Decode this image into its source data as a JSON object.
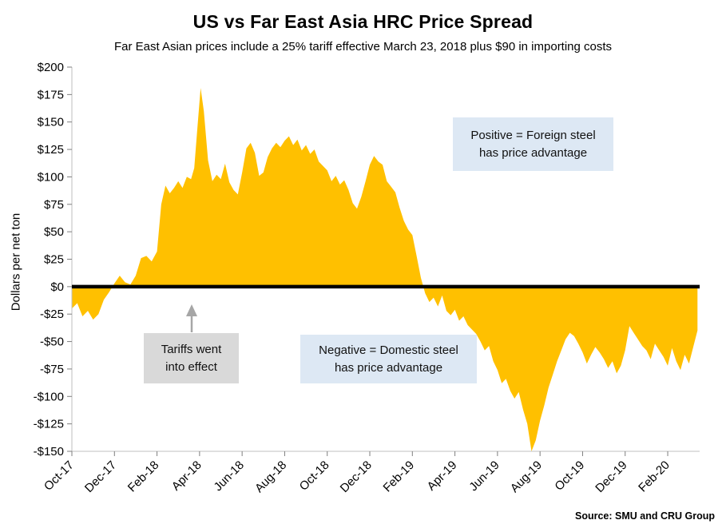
{
  "chart_data": {
    "type": "area",
    "title": "US vs Far East Asia HRC Price Spread",
    "subtitle": "Far East Asian prices include a 25% tariff effective March 23, 2018 plus $90 in importing costs",
    "ylabel": "Dollars per net ton",
    "xlabel": "",
    "ylim": [
      -150,
      200
    ],
    "x_unit": "months since Oct-2017",
    "x_max": 29.5,
    "baseline": 0,
    "grid": "off",
    "legend": "none",
    "area_color": "#FFC000",
    "zero_line_color": "#000000",
    "y_ticks": [
      {
        "v": 200,
        "label": "$200"
      },
      {
        "v": 175,
        "label": "$175"
      },
      {
        "v": 150,
        "label": "$150"
      },
      {
        "v": 125,
        "label": "$125"
      },
      {
        "v": 100,
        "label": "$100"
      },
      {
        "v": 75,
        "label": "$75"
      },
      {
        "v": 50,
        "label": "$50"
      },
      {
        "v": 25,
        "label": "$25"
      },
      {
        "v": 0,
        "label": "$0"
      },
      {
        "v": -25,
        "label": "-$25"
      },
      {
        "v": -50,
        "label": "-$50"
      },
      {
        "v": -75,
        "label": "-$75"
      },
      {
        "v": -100,
        "label": "-$100"
      },
      {
        "v": -125,
        "label": "-$125"
      },
      {
        "v": -150,
        "label": "-$150"
      }
    ],
    "x_ticks": [
      {
        "m": 0,
        "label": "Oct-17"
      },
      {
        "m": 2,
        "label": "Dec-17"
      },
      {
        "m": 4,
        "label": "Feb-18"
      },
      {
        "m": 6,
        "label": "Apr-18"
      },
      {
        "m": 8,
        "label": "Jun-18"
      },
      {
        "m": 10,
        "label": "Aug-18"
      },
      {
        "m": 12,
        "label": "Oct-18"
      },
      {
        "m": 14,
        "label": "Dec-18"
      },
      {
        "m": 16,
        "label": "Feb-19"
      },
      {
        "m": 18,
        "label": "Apr-19"
      },
      {
        "m": 20,
        "label": "Jun-19"
      },
      {
        "m": 22,
        "label": "Aug-19"
      },
      {
        "m": 24,
        "label": "Oct-19"
      },
      {
        "m": 26,
        "label": "Dec-19"
      },
      {
        "m": 28,
        "label": "Feb-20"
      }
    ],
    "points": [
      [
        0,
        -20
      ],
      [
        0.25,
        -15
      ],
      [
        0.5,
        -27
      ],
      [
        0.75,
        -22
      ],
      [
        1,
        -30
      ],
      [
        1.25,
        -25
      ],
      [
        1.5,
        -12
      ],
      [
        1.75,
        -5
      ],
      [
        2,
        3
      ],
      [
        2.25,
        10
      ],
      [
        2.5,
        4
      ],
      [
        2.75,
        2
      ],
      [
        3,
        10
      ],
      [
        3.25,
        26
      ],
      [
        3.5,
        28
      ],
      [
        3.75,
        23
      ],
      [
        4,
        32
      ],
      [
        4.2,
        75
      ],
      [
        4.4,
        92
      ],
      [
        4.6,
        85
      ],
      [
        4.8,
        90
      ],
      [
        5,
        96
      ],
      [
        5.2,
        90
      ],
      [
        5.4,
        100
      ],
      [
        5.6,
        98
      ],
      [
        5.75,
        108
      ],
      [
        5.9,
        145
      ],
      [
        6.05,
        181
      ],
      [
        6.2,
        160
      ],
      [
        6.4,
        115
      ],
      [
        6.6,
        96
      ],
      [
        6.8,
        102
      ],
      [
        7,
        98
      ],
      [
        7.2,
        112
      ],
      [
        7.4,
        95
      ],
      [
        7.6,
        88
      ],
      [
        7.8,
        84
      ],
      [
        8,
        104
      ],
      [
        8.2,
        126
      ],
      [
        8.4,
        131
      ],
      [
        8.6,
        122
      ],
      [
        8.8,
        101
      ],
      [
        9,
        104
      ],
      [
        9.2,
        118
      ],
      [
        9.4,
        126
      ],
      [
        9.6,
        131
      ],
      [
        9.8,
        127
      ],
      [
        10,
        133
      ],
      [
        10.2,
        137
      ],
      [
        10.4,
        129
      ],
      [
        10.6,
        134
      ],
      [
        10.8,
        124
      ],
      [
        11,
        129
      ],
      [
        11.2,
        121
      ],
      [
        11.4,
        125
      ],
      [
        11.6,
        114
      ],
      [
        11.8,
        110
      ],
      [
        12,
        106
      ],
      [
        12.2,
        96
      ],
      [
        12.4,
        101
      ],
      [
        12.6,
        93
      ],
      [
        12.8,
        97
      ],
      [
        13,
        88
      ],
      [
        13.2,
        76
      ],
      [
        13.4,
        71
      ],
      [
        13.6,
        82
      ],
      [
        13.8,
        96
      ],
      [
        14,
        111
      ],
      [
        14.2,
        119
      ],
      [
        14.4,
        114
      ],
      [
        14.6,
        111
      ],
      [
        14.8,
        96
      ],
      [
        15,
        91
      ],
      [
        15.2,
        86
      ],
      [
        15.4,
        72
      ],
      [
        15.6,
        60
      ],
      [
        15.8,
        52
      ],
      [
        16,
        47
      ],
      [
        16.2,
        28
      ],
      [
        16.4,
        8
      ],
      [
        16.6,
        -6
      ],
      [
        16.8,
        -14
      ],
      [
        17,
        -10
      ],
      [
        17.2,
        -18
      ],
      [
        17.4,
        -8
      ],
      [
        17.6,
        -22
      ],
      [
        17.8,
        -26
      ],
      [
        18,
        -21
      ],
      [
        18.2,
        -31
      ],
      [
        18.4,
        -27
      ],
      [
        18.6,
        -35
      ],
      [
        18.8,
        -39
      ],
      [
        19,
        -43
      ],
      [
        19.2,
        -50
      ],
      [
        19.4,
        -58
      ],
      [
        19.6,
        -54
      ],
      [
        19.8,
        -68
      ],
      [
        20,
        -76
      ],
      [
        20.2,
        -88
      ],
      [
        20.4,
        -84
      ],
      [
        20.6,
        -95
      ],
      [
        20.8,
        -102
      ],
      [
        21,
        -96
      ],
      [
        21.2,
        -112
      ],
      [
        21.4,
        -125
      ],
      [
        21.6,
        -150
      ],
      [
        21.8,
        -140
      ],
      [
        22,
        -122
      ],
      [
        22.2,
        -108
      ],
      [
        22.4,
        -92
      ],
      [
        22.6,
        -80
      ],
      [
        22.8,
        -68
      ],
      [
        23,
        -58
      ],
      [
        23.2,
        -48
      ],
      [
        23.4,
        -42
      ],
      [
        23.6,
        -45
      ],
      [
        23.8,
        -52
      ],
      [
        24,
        -60
      ],
      [
        24.2,
        -70
      ],
      [
        24.4,
        -62
      ],
      [
        24.6,
        -55
      ],
      [
        24.8,
        -60
      ],
      [
        25,
        -66
      ],
      [
        25.2,
        -74
      ],
      [
        25.4,
        -68
      ],
      [
        25.6,
        -79
      ],
      [
        25.8,
        -72
      ],
      [
        26,
        -58
      ],
      [
        26.2,
        -36
      ],
      [
        26.4,
        -42
      ],
      [
        26.6,
        -48
      ],
      [
        26.8,
        -54
      ],
      [
        27,
        -58
      ],
      [
        27.2,
        -66
      ],
      [
        27.4,
        -52
      ],
      [
        27.6,
        -58
      ],
      [
        27.8,
        -64
      ],
      [
        28,
        -72
      ],
      [
        28.2,
        -56
      ],
      [
        28.4,
        -68
      ],
      [
        28.6,
        -76
      ],
      [
        28.8,
        -62
      ],
      [
        29,
        -70
      ],
      [
        29.2,
        -55
      ],
      [
        29.4,
        -40
      ]
    ],
    "annotations": {
      "positive": {
        "line1": "Positive = Foreign steel",
        "line2": "has price advantage"
      },
      "negative": {
        "line1": "Negative = Domestic steel",
        "line2": "has price advantage"
      },
      "tariff": {
        "line1": "Tariffs went",
        "line2": "into effect"
      }
    }
  },
  "source": "Source: SMU and CRU Group"
}
